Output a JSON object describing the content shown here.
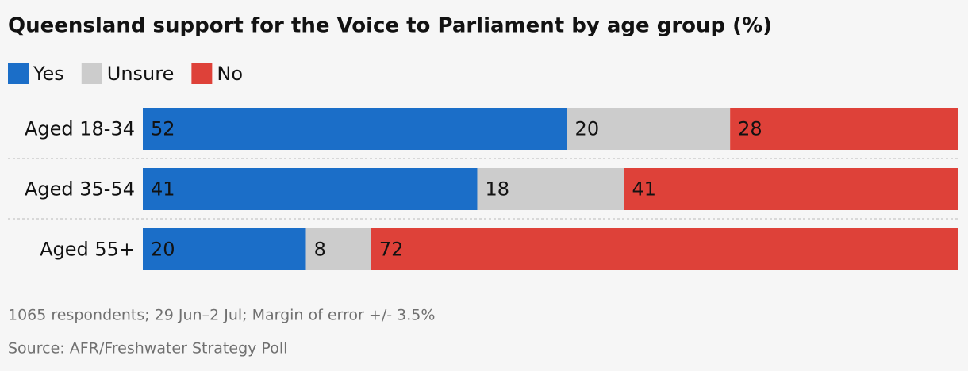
{
  "chart_data": {
    "type": "stacked-bar-horizontal",
    "title": "Queensland support for the Voice to Parliament by age group (%)",
    "categories": [
      "Aged 18-34",
      "Aged 35-54",
      "Aged 55+"
    ],
    "series": [
      {
        "name": "Yes",
        "color": "#1b6ec8",
        "values": [
          52,
          41,
          20
        ]
      },
      {
        "name": "Unsure",
        "color": "#cccccc",
        "values": [
          20,
          18,
          8
        ]
      },
      {
        "name": "No",
        "color": "#de4139",
        "values": [
          28,
          41,
          72
        ]
      }
    ],
    "xlim": [
      0,
      100
    ],
    "notes": [
      "1065 respondents; 29 Jun–2 Jul; Margin of error +/- 3.5%",
      "Source: AFR/Freshwater Strategy Poll"
    ]
  }
}
